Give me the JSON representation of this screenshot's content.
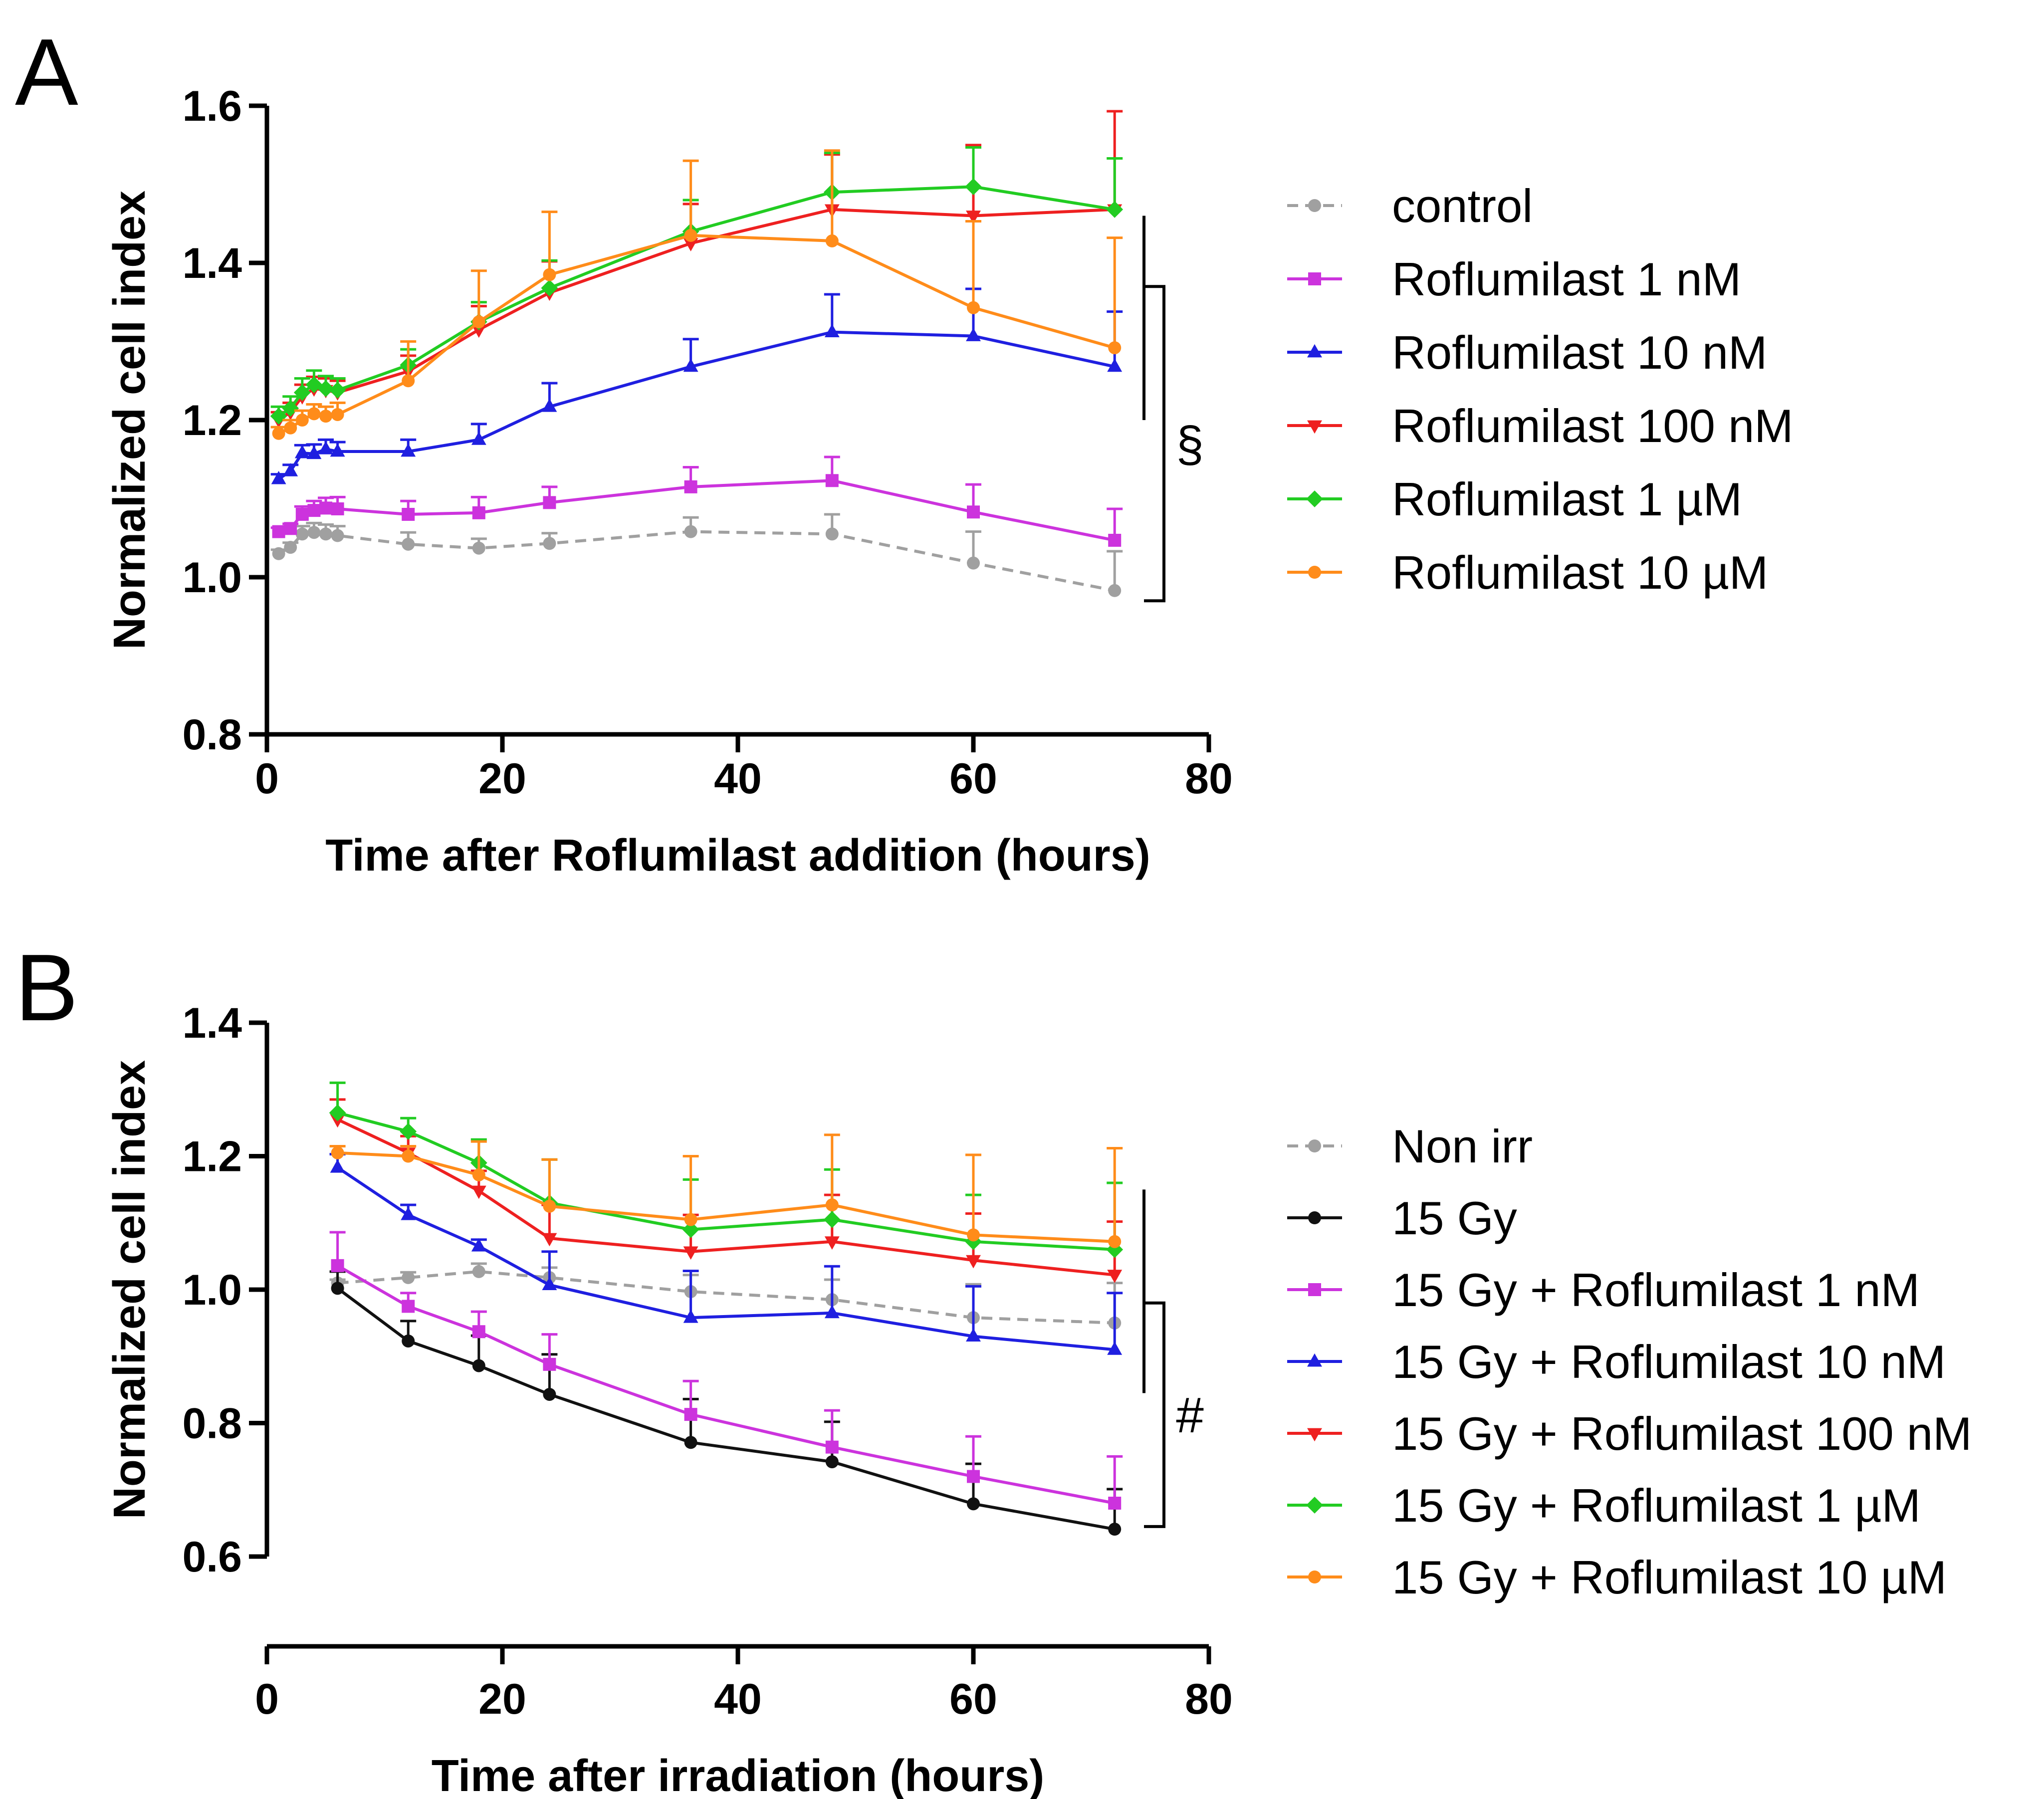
{
  "chart_data": [
    {
      "type": "line",
      "panel_label": "A",
      "xlabel": "Time after Roflumilast addition (hours)",
      "ylabel": "Normalized cell index",
      "xlim": [
        0,
        80
      ],
      "ylim": [
        0.8,
        1.6
      ],
      "xticks": [
        "0",
        "20",
        "40",
        "60",
        "80"
      ],
      "yticks": [
        "0.8",
        "1.0",
        "1.2",
        "1.4",
        "1.6"
      ],
      "x": [
        1,
        2,
        3,
        4,
        5,
        6,
        12,
        18,
        24,
        36,
        48,
        60,
        72
      ],
      "legend_position": "right",
      "significance_mark": "§",
      "series": [
        {
          "name": "control",
          "color": "#a0a0a0",
          "dashed": true,
          "marker": "circle",
          "values": [
            1.03,
            1.038,
            1.055,
            1.057,
            1.055,
            1.053,
            1.042,
            1.037,
            1.043,
            1.058,
            1.055,
            1.018,
            0.983
          ],
          "errors": [
            0.005,
            0.006,
            0.01,
            0.012,
            0.012,
            0.012,
            0.015,
            0.012,
            0.013,
            0.018,
            0.025,
            0.04,
            0.05
          ]
        },
        {
          "name": "Roflumilast 1 nM",
          "color": "#cc33dd",
          "dashed": false,
          "marker": "square",
          "values": [
            1.058,
            1.062,
            1.08,
            1.085,
            1.088,
            1.087,
            1.08,
            1.082,
            1.095,
            1.115,
            1.123,
            1.083,
            1.047
          ],
          "errors": [
            0.005,
            0.006,
            0.01,
            0.012,
            0.013,
            0.015,
            0.017,
            0.02,
            0.02,
            0.025,
            0.03,
            0.035,
            0.04
          ]
        },
        {
          "name": "Roflumilast 10 nM",
          "color": "#1f1fe0",
          "dashed": false,
          "marker": "triangle-up",
          "values": [
            1.125,
            1.135,
            1.158,
            1.157,
            1.163,
            1.16,
            1.16,
            1.175,
            1.217,
            1.268,
            1.312,
            1.307,
            1.268
          ],
          "errors": [
            0.006,
            0.008,
            0.01,
            0.012,
            0.012,
            0.012,
            0.015,
            0.02,
            0.03,
            0.035,
            0.048,
            0.06,
            0.07
          ]
        },
        {
          "name": "Roflumilast 100 nM",
          "color": "#ee2020",
          "dashed": false,
          "marker": "triangle-down",
          "values": [
            1.2,
            1.21,
            1.23,
            1.24,
            1.238,
            1.235,
            1.262,
            1.315,
            1.362,
            1.425,
            1.468,
            1.46,
            1.468
          ],
          "errors": [
            0.01,
            0.012,
            0.015,
            0.015,
            0.015,
            0.015,
            0.02,
            0.03,
            0.04,
            0.05,
            0.07,
            0.09,
            0.125
          ]
        },
        {
          "name": "Roflumilast 1 µM",
          "color": "#22cc22",
          "dashed": false,
          "marker": "diamond",
          "values": [
            1.205,
            1.215,
            1.235,
            1.245,
            1.24,
            1.238,
            1.27,
            1.325,
            1.368,
            1.44,
            1.49,
            1.497,
            1.468
          ],
          "errors": [
            0.012,
            0.015,
            0.018,
            0.018,
            0.016,
            0.015,
            0.02,
            0.025,
            0.035,
            0.04,
            0.05,
            0.05,
            0.065
          ]
        },
        {
          "name": "Roflumilast 10 µM",
          "color": "#ff8c1a",
          "dashed": false,
          "marker": "circle",
          "values": [
            1.183,
            1.19,
            1.2,
            1.208,
            1.205,
            1.207,
            1.25,
            1.325,
            1.385,
            1.435,
            1.428,
            1.343,
            1.292
          ],
          "errors": [
            0.008,
            0.01,
            0.012,
            0.012,
            0.012,
            0.015,
            0.05,
            0.065,
            0.08,
            0.095,
            0.115,
            0.11,
            0.14
          ]
        }
      ]
    },
    {
      "type": "line",
      "panel_label": "B",
      "xlabel": "Time after irradiation (hours)",
      "ylabel": "Normalized cell index",
      "xlim": [
        0,
        80
      ],
      "ylim": [
        0.6,
        1.4
      ],
      "xticks": [
        "0",
        "20",
        "40",
        "60",
        "80"
      ],
      "yticks": [
        "0.6",
        "0.8",
        "1.0",
        "1.2",
        "1.4"
      ],
      "x": [
        6,
        12,
        18,
        24,
        36,
        48,
        60,
        72
      ],
      "legend_position": "right",
      "significance_mark": "#",
      "series": [
        {
          "name": "Non irr",
          "color": "#a0a0a0",
          "dashed": true,
          "marker": "circle",
          "values": [
            1.01,
            1.018,
            1.027,
            1.018,
            0.997,
            0.985,
            0.958,
            0.95
          ],
          "errors": [
            0.005,
            0.008,
            0.012,
            0.015,
            0.025,
            0.03,
            0.05,
            0.06
          ]
        },
        {
          "name": "15 Gy",
          "color": "#111111",
          "dashed": false,
          "marker": "circle",
          "values": [
            1.002,
            0.923,
            0.886,
            0.843,
            0.771,
            0.742,
            0.679,
            0.641
          ],
          "errors": [
            0.025,
            0.03,
            0.045,
            0.06,
            0.065,
            0.06,
            0.06,
            0.06
          ]
        },
        {
          "name": "15 Gy + Roflumilast 1 nM",
          "color": "#cc33dd",
          "dashed": false,
          "marker": "square",
          "values": [
            1.036,
            0.975,
            0.937,
            0.888,
            0.813,
            0.764,
            0.72,
            0.68
          ],
          "errors": [
            0.05,
            0.02,
            0.03,
            0.045,
            0.05,
            0.055,
            0.06,
            0.07
          ]
        },
        {
          "name": "15 Gy + Roflumilast 10 nM",
          "color": "#1f1fe0",
          "dashed": false,
          "marker": "triangle-up",
          "values": [
            1.183,
            1.112,
            1.065,
            1.007,
            0.958,
            0.965,
            0.93,
            0.91
          ],
          "errors": [
            0.02,
            0.015,
            0.01,
            0.05,
            0.07,
            0.07,
            0.075,
            0.085
          ]
        },
        {
          "name": "15 Gy + Roflumilast 100 nM",
          "color": "#ee2020",
          "dashed": false,
          "marker": "triangle-down",
          "values": [
            1.255,
            1.205,
            1.148,
            1.077,
            1.057,
            1.072,
            1.044,
            1.022
          ],
          "errors": [
            0.03,
            0.025,
            0.03,
            0.05,
            0.055,
            0.07,
            0.07,
            0.08
          ]
        },
        {
          "name": "15 Gy + Roflumilast 1 µM",
          "color": "#22cc22",
          "dashed": false,
          "marker": "diamond",
          "values": [
            1.265,
            1.237,
            1.19,
            1.13,
            1.09,
            1.105,
            1.072,
            1.06
          ],
          "errors": [
            0.045,
            0.02,
            0.035,
            0.065,
            0.075,
            0.075,
            0.07,
            0.1
          ]
        },
        {
          "name": "15 Gy + Roflumilast 10 µM",
          "color": "#ff8c1a",
          "dashed": false,
          "marker": "circle",
          "values": [
            1.205,
            1.2,
            1.172,
            1.125,
            1.105,
            1.127,
            1.082,
            1.072
          ],
          "errors": [
            0.01,
            0.015,
            0.05,
            0.07,
            0.095,
            0.105,
            0.12,
            0.14
          ]
        }
      ]
    }
  ]
}
